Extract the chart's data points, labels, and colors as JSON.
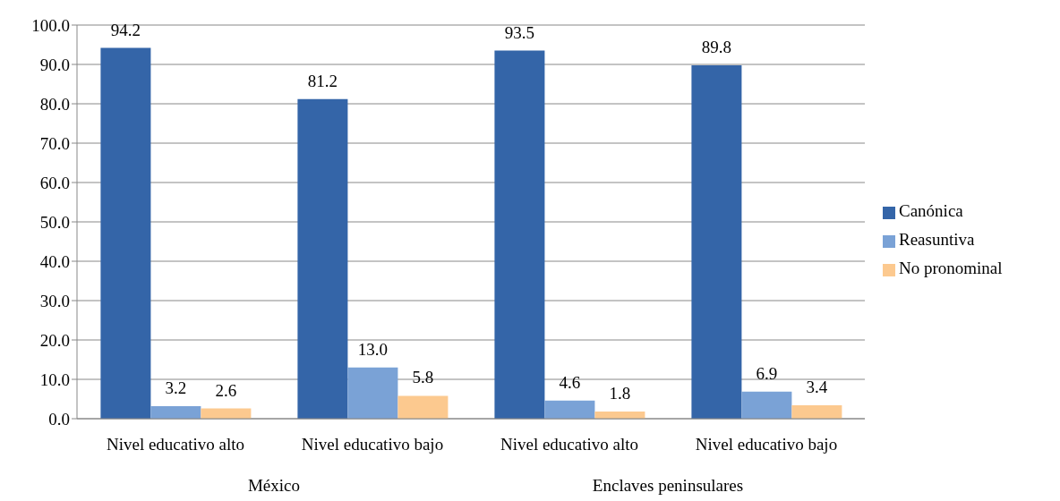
{
  "chart_data": {
    "type": "bar",
    "categories": [
      "Nivel educativo alto",
      "Nivel educativo bajo",
      "Nivel educativo alto",
      "Nivel educativo bajo"
    ],
    "series": [
      {
        "name": "Canónica",
        "color": "#3465a8",
        "values": [
          94.2,
          81.2,
          93.5,
          89.8
        ],
        "value_labels": [
          "94.2",
          "81.2",
          "93.5",
          "89.8"
        ]
      },
      {
        "name": "Reasuntiva",
        "color": "#7aa2d6",
        "values": [
          3.2,
          13.0,
          4.6,
          6.9
        ],
        "value_labels": [
          "3.2",
          "13.0",
          "4.6",
          "6.9"
        ]
      },
      {
        "name": "No pronominal",
        "color": "#fcc98f",
        "values": [
          2.6,
          5.8,
          1.8,
          3.4
        ],
        "value_labels": [
          "2.6",
          "5.8",
          "1.8",
          "3.4"
        ]
      }
    ],
    "ylim": [
      0,
      100
    ],
    "yticks": [
      {
        "value": 0,
        "label": "0.0"
      },
      {
        "value": 10,
        "label": "10.0"
      },
      {
        "value": 20,
        "label": "20.0"
      },
      {
        "value": 30,
        "label": "30.0"
      },
      {
        "value": 40,
        "label": "40.0"
      },
      {
        "value": 50,
        "label": "50.0"
      },
      {
        "value": 60,
        "label": "60.0"
      },
      {
        "value": 70,
        "label": "70.0"
      },
      {
        "value": 80,
        "label": "80.0"
      },
      {
        "value": 90,
        "label": "90.0"
      },
      {
        "value": 100,
        "label": "100.0"
      }
    ],
    "grid": "y",
    "legend": "right",
    "annotations": [
      "México",
      "Enclaves peninsulares"
    ]
  }
}
